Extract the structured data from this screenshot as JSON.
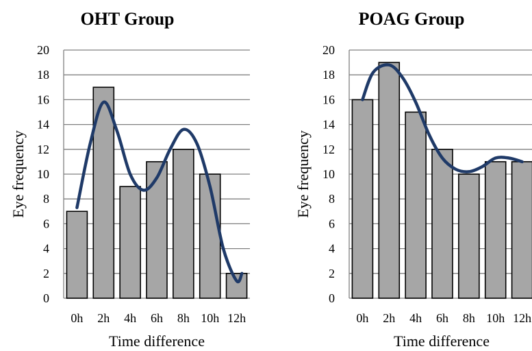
{
  "chart_data": [
    {
      "type": "bar",
      "title": "OHT Group",
      "xlabel": "Time difference",
      "ylabel": "Eye frequency",
      "categories": [
        "0h",
        "2h",
        "4h",
        "6h",
        "8h",
        "10h",
        "12h"
      ],
      "values": [
        7,
        17,
        9,
        11,
        12,
        10,
        2
      ],
      "ylim": [
        0,
        20
      ],
      "yticks": [
        "0",
        "2",
        "4",
        "6",
        "8",
        "10",
        "12",
        "14",
        "16",
        "18",
        "20"
      ],
      "grid": true,
      "bar_color": "#a6a6a6",
      "trend_curve": {
        "color": "#1f3a68",
        "x": [
          0,
          0.5,
          1,
          1.5,
          2,
          2.5,
          3,
          3.5,
          4,
          4.5,
          5,
          5.5,
          6,
          6.2
        ],
        "y": [
          7.3,
          12.5,
          15.8,
          13.5,
          10,
          8.7,
          9.7,
          12,
          13.6,
          12.5,
          9,
          4,
          1.4,
          2
        ]
      }
    },
    {
      "type": "bar",
      "title": "POAG Group",
      "xlabel": "Time difference",
      "ylabel": "Eye frequency",
      "categories": [
        "0h",
        "2h",
        "4h",
        "6h",
        "8h",
        "10h",
        "12h"
      ],
      "values": [
        16,
        19,
        15,
        12,
        10,
        11,
        11
      ],
      "ylim": [
        0,
        20
      ],
      "yticks": [
        "0",
        "2",
        "4",
        "6",
        "8",
        "10",
        "12",
        "14",
        "16",
        "18",
        "20"
      ],
      "grid": true,
      "bar_color": "#a6a6a6",
      "trend_curve": {
        "color": "#1f3a68",
        "x": [
          0,
          0.4,
          1,
          1.5,
          2,
          2.5,
          3,
          3.5,
          4,
          4.5,
          5,
          5.5,
          6
        ],
        "y": [
          16,
          18.2,
          18.8,
          17.8,
          15.8,
          13.2,
          11.3,
          10.4,
          10.2,
          10.6,
          11.3,
          11.3,
          11
        ]
      }
    }
  ]
}
